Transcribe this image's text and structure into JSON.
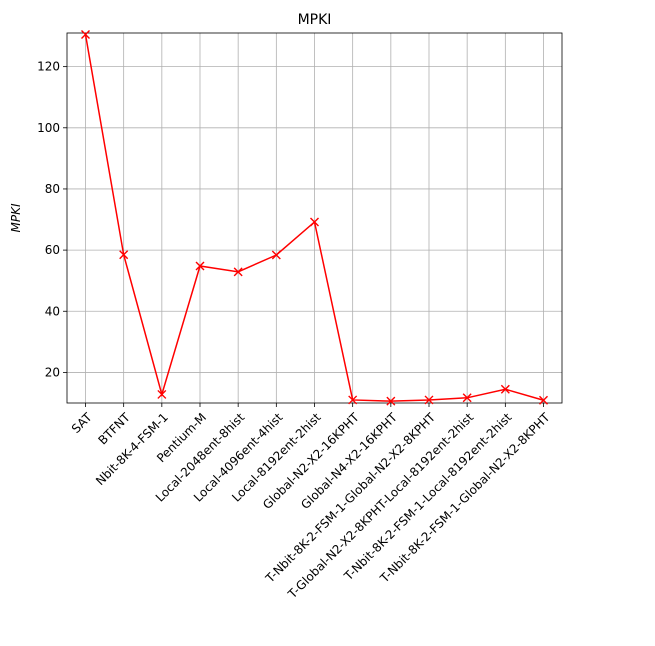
{
  "chart_data": {
    "type": "line",
    "title": "MPKI",
    "xlabel": "",
    "ylabel": "MPKI",
    "categories": [
      "SAT",
      "BTFNT",
      "Nbit-8K-4-FSM-1",
      "Pentium-M",
      "Local-2048ent-8hist",
      "Local-4096ent-4hist",
      "Local-8192ent-2hist",
      "Global-N2-X2-16KPHT",
      "Global-N4-X2-16KPHT",
      "T-Nbit-8K-2-FSM-1-Global-N2-X2-8KPHT",
      "T-Global-N2-X2-8KPHT-Local-8192ent-2hist",
      "T-Nbit-8K-2-FSM-1-Local-8192ent-2hist",
      "T-Nbit-8K-2-FSM-1-Global-N2-X2-8KPHT"
    ],
    "series": [
      {
        "color": "#ff0000",
        "marker": "x",
        "values": [
          130.5,
          58.5,
          12.8,
          54.8,
          52.9,
          58.4,
          69.2,
          11.0,
          10.6,
          11.0,
          11.7,
          14.5,
          10.9
        ]
      }
    ],
    "ylim": [
      10,
      131
    ],
    "yticks": [
      20,
      40,
      60,
      80,
      100,
      120
    ],
    "grid": true
  }
}
